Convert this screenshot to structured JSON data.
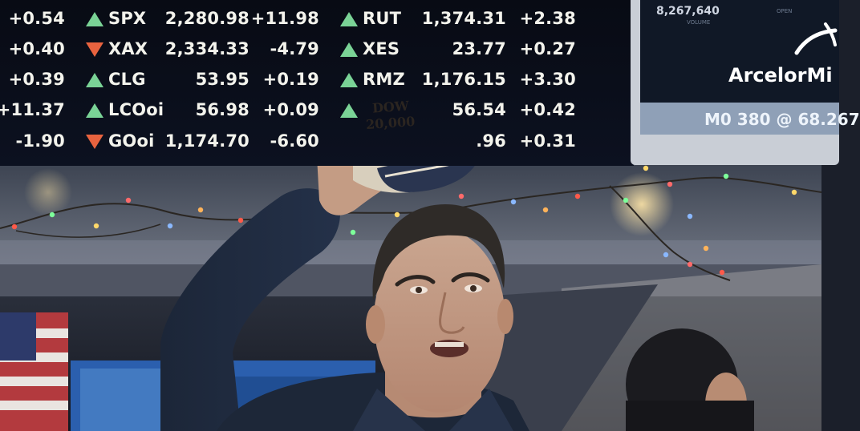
{
  "board": {
    "rows": [
      {
        "change_left": "+0.54",
        "dir1": "up",
        "sym1": "SPX",
        "price1": "2,280.98",
        "change1": "+11.98",
        "dir2": "up",
        "sym2": "RUT",
        "price2": "1,374.31",
        "change2": "+2.38"
      },
      {
        "change_left": "+0.40",
        "dir1": "down",
        "sym1": "XAX",
        "price1": "2,334.33",
        "change1": "-4.79",
        "dir2": "up",
        "sym2": "XES",
        "price2": "23.77",
        "change2": "+0.27"
      },
      {
        "change_left": "+0.39",
        "dir1": "up",
        "sym1": "CLG",
        "price1": "53.95",
        "change1": "+0.19",
        "dir2": "up",
        "sym2": "RMZ",
        "price2": "1,176.15",
        "change2": "+3.30"
      },
      {
        "change_left": "+11.37",
        "dir1": "up",
        "sym1": "LCOoi",
        "price1": "56.98",
        "change1": "+0.09",
        "dir2": "up",
        "sym2": "",
        "price2": "56.54",
        "change2": "+0.42"
      },
      {
        "change_left": "-1.90",
        "dir1": "down",
        "sym1": "GOoi",
        "price1": "1,174.70",
        "change1": "-6.60",
        "dir2": "",
        "sym2": "",
        "price2": ".96",
        "change2": "+0.31"
      }
    ],
    "colors": {
      "up": "#7ad396",
      "down": "#e8633f",
      "text": "#f3f3ec"
    }
  },
  "monitor": {
    "volume_value": "8,267,640",
    "volume_label": "VOLUME",
    "open_label": "OPEN",
    "logo": "ArcelorMi",
    "footer": "M0 380 @ 68.267"
  },
  "cap": {
    "line1": "DOW",
    "line2": "20,000"
  }
}
